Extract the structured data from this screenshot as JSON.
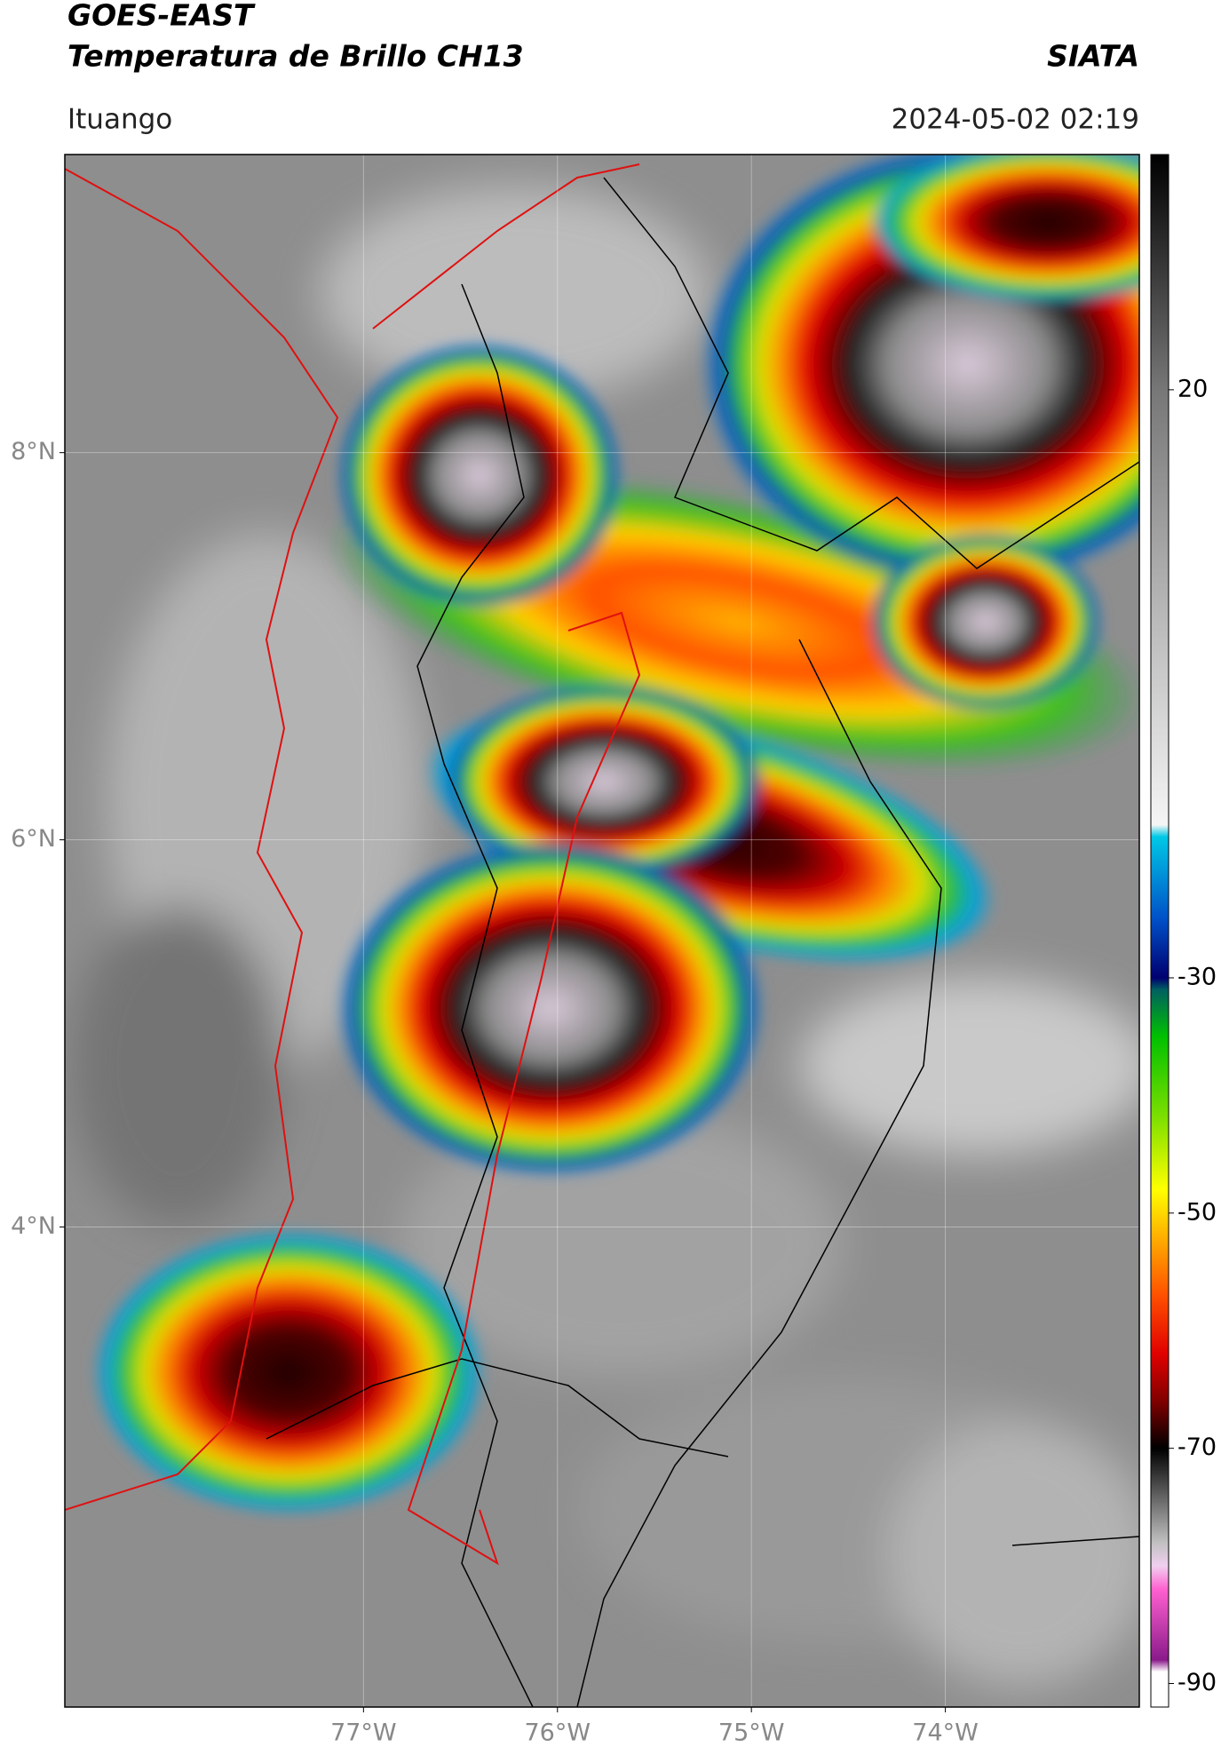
{
  "header": {
    "title": "GOES-EAST",
    "subtitle": "Temperatura de Brillo CH13",
    "source": "SIATA",
    "location": "Ituango",
    "datetime": "2024-05-02 02:19"
  },
  "map": {
    "xlim": [
      -78.54,
      -73.0
    ],
    "ylim": [
      1.52,
      9.54
    ],
    "xticks": [
      {
        "value": -77,
        "label": "77°W"
      },
      {
        "value": -76,
        "label": "76°W"
      },
      {
        "value": -75,
        "label": "75°W"
      },
      {
        "value": -74,
        "label": "74°W"
      }
    ],
    "yticks": [
      {
        "value": 4,
        "label": "4°N"
      },
      {
        "value": 6,
        "label": "6°N"
      },
      {
        "value": 8,
        "label": "8°N"
      }
    ],
    "grid": true
  },
  "colorbar": {
    "lim": [
      -92,
      40
    ],
    "ticks": [
      20,
      -30,
      -50,
      -70,
      -90
    ],
    "colormap": [
      {
        "value": 40,
        "color": "#000000"
      },
      {
        "value": 30,
        "color": "#3a3a3a"
      },
      {
        "value": 20,
        "color": "#777777"
      },
      {
        "value": -17,
        "color": "#f5f5f5"
      },
      {
        "value": -18,
        "color": "#00c8e6"
      },
      {
        "value": -25,
        "color": "#0050c8"
      },
      {
        "value": -30,
        "color": "#000070"
      },
      {
        "value": -31,
        "color": "#006060"
      },
      {
        "value": -35,
        "color": "#00c000"
      },
      {
        "value": -42,
        "color": "#80e000"
      },
      {
        "value": -48,
        "color": "#ffff00"
      },
      {
        "value": -52,
        "color": "#ffb000"
      },
      {
        "value": -57,
        "color": "#ff5000"
      },
      {
        "value": -62,
        "color": "#e00000"
      },
      {
        "value": -66,
        "color": "#800000"
      },
      {
        "value": -70,
        "color": "#000000"
      },
      {
        "value": -74,
        "color": "#606060"
      },
      {
        "value": -78,
        "color": "#c0c0c0"
      },
      {
        "value": -80,
        "color": "#f0d0f0"
      },
      {
        "value": -82,
        "color": "#ff60d0"
      },
      {
        "value": -88,
        "color": "#8a1a8a"
      },
      {
        "value": -89,
        "color": "#ffffff"
      },
      {
        "value": -92,
        "color": "#ffffff"
      }
    ]
  }
}
